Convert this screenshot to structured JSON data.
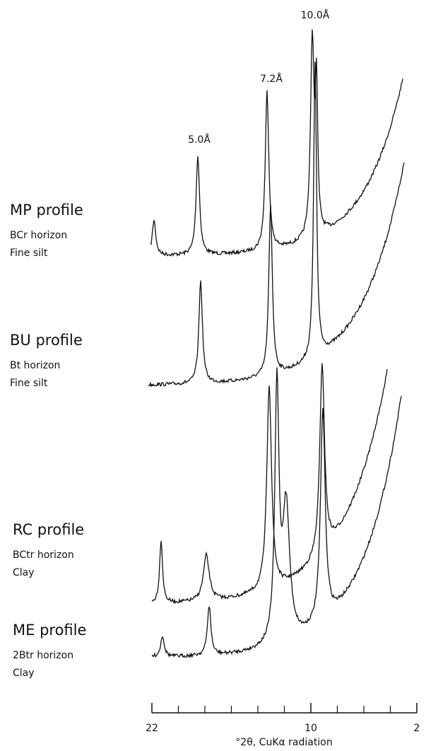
{
  "chart_data": {
    "type": "line",
    "annotations": [
      "5.0Å",
      "7.2Å",
      "10.0Å"
    ],
    "profiles": [
      {
        "name": "MP profile",
        "horizon": "BCr horizon",
        "fraction": "Fine silt"
      },
      {
        "name": "BU profile",
        "horizon": "Bt horizon",
        "fraction": "Fine silt"
      },
      {
        "name": "RC profile",
        "horizon": "BCtr horizon",
        "fraction": "Clay"
      },
      {
        "name": "ME profile",
        "horizon": "2Btr horizon",
        "fraction": "Clay"
      }
    ],
    "xlabel": "°2θ, CuKα radiation",
    "xlim": [
      22,
      2
    ],
    "xticks": [
      22,
      10,
      2
    ],
    "minor_xticks": [
      20,
      18,
      16,
      14,
      12,
      8,
      6,
      4
    ]
  }
}
